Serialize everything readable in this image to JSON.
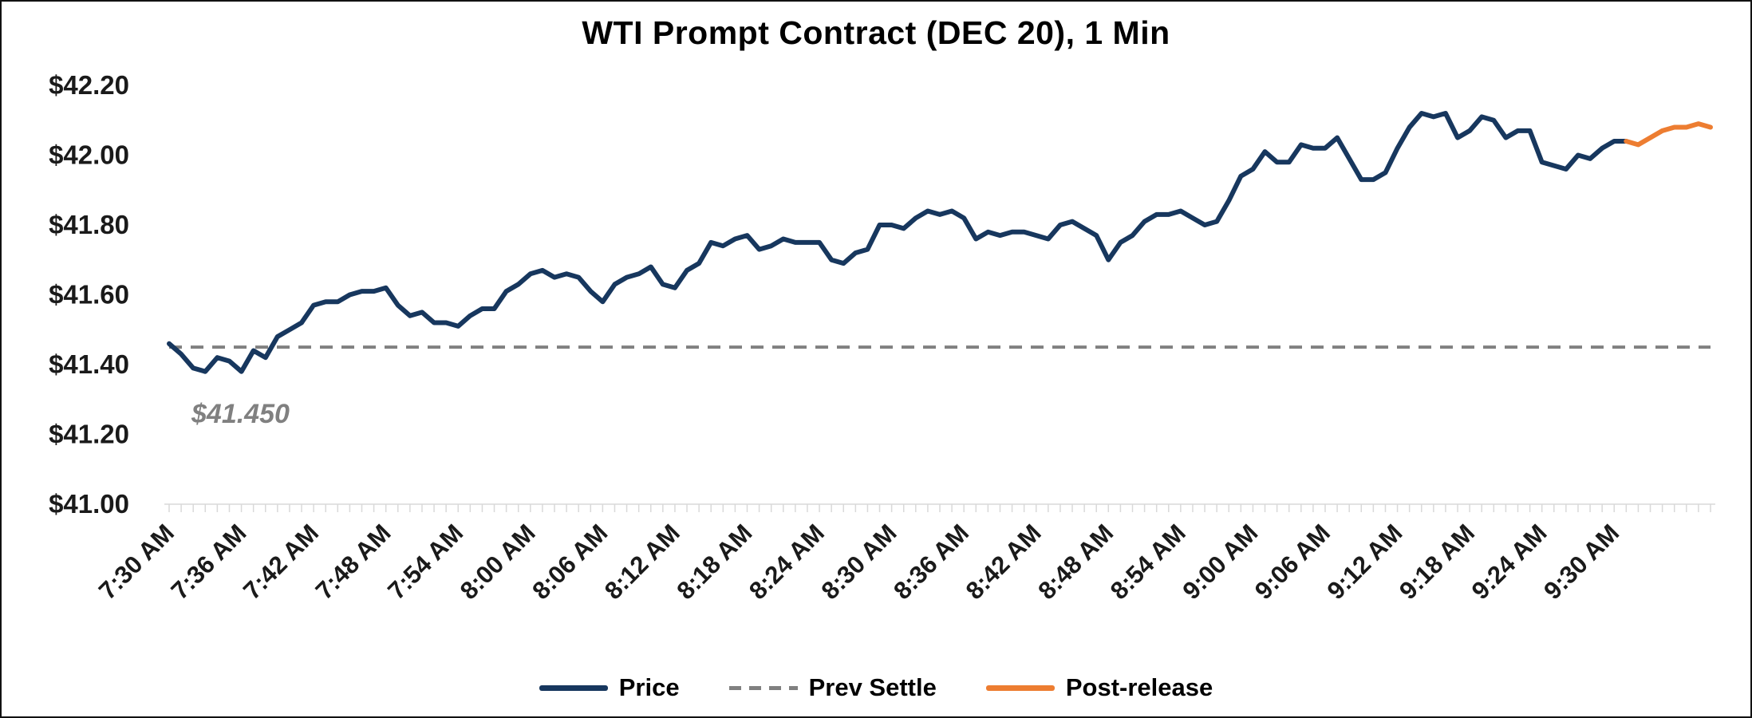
{
  "chart_data": {
    "type": "line",
    "title": "WTI Prompt Contract (DEC 20), 1 Min",
    "ylim": [
      41.0,
      42.2
    ],
    "grid": false,
    "legend_position": "bottom-center",
    "y_ticks": [
      {
        "value": 41.0,
        "label": "$41.00"
      },
      {
        "value": 41.2,
        "label": "$41.20"
      },
      {
        "value": 41.4,
        "label": "$41.40"
      },
      {
        "value": 41.6,
        "label": "$41.60"
      },
      {
        "value": 41.8,
        "label": "$41.80"
      },
      {
        "value": 42.0,
        "label": "$42.00"
      },
      {
        "value": 42.2,
        "label": "$42.20"
      }
    ],
    "x_minutes_total": 128,
    "x_minor_tick_every_minutes": 1,
    "x_ticks": [
      {
        "t": 0,
        "label": "7:30 AM"
      },
      {
        "t": 6,
        "label": "7:36 AM"
      },
      {
        "t": 12,
        "label": "7:42 AM"
      },
      {
        "t": 18,
        "label": "7:48 AM"
      },
      {
        "t": 24,
        "label": "7:54 AM"
      },
      {
        "t": 30,
        "label": "8:00 AM"
      },
      {
        "t": 36,
        "label": "8:06 AM"
      },
      {
        "t": 42,
        "label": "8:12 AM"
      },
      {
        "t": 48,
        "label": "8:18 AM"
      },
      {
        "t": 54,
        "label": "8:24 AM"
      },
      {
        "t": 60,
        "label": "8:30 AM"
      },
      {
        "t": 66,
        "label": "8:36 AM"
      },
      {
        "t": 72,
        "label": "8:42 AM"
      },
      {
        "t": 78,
        "label": "8:48 AM"
      },
      {
        "t": 84,
        "label": "8:54 AM"
      },
      {
        "t": 90,
        "label": "9:00 AM"
      },
      {
        "t": 96,
        "label": "9:06 AM"
      },
      {
        "t": 102,
        "label": "9:12 AM"
      },
      {
        "t": 108,
        "label": "9:18 AM"
      },
      {
        "t": 114,
        "label": "9:24 AM"
      },
      {
        "t": 120,
        "label": "9:30 AM"
      }
    ],
    "prev_settle": {
      "value": 41.45,
      "label": "$41.450",
      "color": "#808080"
    },
    "series": [
      {
        "name": "Price",
        "color": "#17375E",
        "start_t": 0,
        "values": [
          41.46,
          41.43,
          41.39,
          41.38,
          41.42,
          41.41,
          41.38,
          41.44,
          41.42,
          41.48,
          41.5,
          41.52,
          41.57,
          41.58,
          41.58,
          41.6,
          41.61,
          41.61,
          41.62,
          41.57,
          41.54,
          41.55,
          41.52,
          41.52,
          41.51,
          41.54,
          41.56,
          41.56,
          41.61,
          41.63,
          41.66,
          41.67,
          41.65,
          41.66,
          41.65,
          41.61,
          41.58,
          41.63,
          41.65,
          41.66,
          41.68,
          41.63,
          41.62,
          41.67,
          41.69,
          41.75,
          41.74,
          41.76,
          41.77,
          41.73,
          41.74,
          41.76,
          41.75,
          41.75,
          41.75,
          41.7,
          41.69,
          41.72,
          41.73,
          41.8,
          41.8,
          41.79,
          41.82,
          41.84,
          41.83,
          41.84,
          41.82,
          41.76,
          41.78,
          41.77,
          41.78,
          41.78,
          41.77,
          41.76,
          41.8,
          41.81,
          41.79,
          41.77,
          41.7,
          41.75,
          41.77,
          41.81,
          41.83,
          41.83,
          41.84,
          41.82,
          41.8,
          41.81,
          41.87,
          41.94,
          41.96,
          42.01,
          41.98,
          41.98,
          42.03,
          42.02,
          42.02,
          42.05,
          41.99,
          41.93,
          41.93,
          41.95,
          42.02,
          42.08,
          42.12,
          42.11,
          42.12,
          42.05,
          42.07,
          42.11,
          42.1,
          42.05,
          42.07,
          42.07,
          41.98,
          41.97,
          41.96,
          42.0,
          41.99,
          42.02,
          42.04,
          42.04
        ]
      },
      {
        "name": "Post-release",
        "color": "#ED7D31",
        "start_t": 121,
        "values": [
          42.04,
          42.03,
          42.05,
          42.07,
          42.08,
          42.08,
          42.09,
          42.08
        ]
      }
    ],
    "legend": [
      {
        "label": "Price",
        "style": "solid",
        "color": "#17375E"
      },
      {
        "label": "Prev Settle",
        "style": "dashed",
        "color": "#808080"
      },
      {
        "label": "Post-release",
        "style": "solid",
        "color": "#ED7D31"
      }
    ]
  }
}
